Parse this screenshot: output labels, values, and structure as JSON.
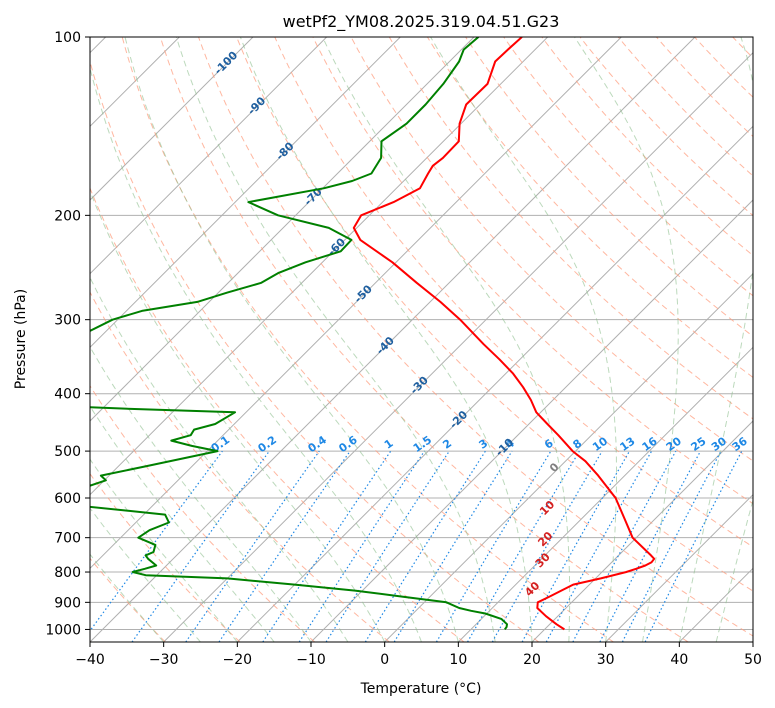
{
  "chart_data": {
    "type": "skew-t",
    "title": "wetPf2_YM08.2025.319.04.51.G23",
    "xlabel": "Temperature (°C)",
    "ylabel": "Pressure (hPa)",
    "xlim": [
      -40,
      50
    ],
    "ylim": [
      1050,
      100
    ],
    "y_scale": "log",
    "x_ticks": [
      "−40",
      "−30",
      "−20",
      "−10",
      "0",
      "10",
      "20",
      "30",
      "40",
      "50"
    ],
    "y_ticks": [
      "100",
      "200",
      "300",
      "400",
      "500",
      "600",
      "700",
      "800",
      "900",
      "1000"
    ],
    "grid": true,
    "colors": {
      "temperature": "#ff0000",
      "dewpoint": "#008000",
      "isotherm": "#b0b0b0",
      "dry_adiabat": "#ff9f80",
      "moist_adiabat": "#8fbf8f",
      "mixing_ratio": "#1e88e5",
      "dry_label": "#1f5f9f",
      "moist_label": "#d42020",
      "moist_zero_label": "#808080"
    },
    "series": [
      {
        "name": "Temperature",
        "pressure": [
          1000,
          980,
          950,
          920,
          900,
          880,
          860,
          840,
          820,
          800,
          790,
          780,
          770,
          760,
          750,
          700,
          650,
          600,
          550,
          520,
          500,
          470,
          450,
          430,
          410,
          390,
          370,
          350,
          330,
          300,
          280,
          260,
          240,
          220,
          210,
          200,
          190,
          180,
          170,
          165,
          160,
          150,
          140,
          130,
          120,
          110,
          105,
          100
        ],
        "temperature": [
          22.7,
          20.9,
          18.4,
          16.1,
          15.4,
          16.2,
          17.0,
          17.8,
          20.7,
          23.3,
          24.2,
          25.0,
          25.4,
          25.3,
          24.4,
          19.5,
          15.8,
          11.8,
          6.4,
          2.7,
          -0.4,
          -4.5,
          -7.5,
          -10.6,
          -13.0,
          -15.8,
          -19.0,
          -22.8,
          -27.0,
          -33.5,
          -38.6,
          -44.4,
          -50.5,
          -57.9,
          -60.4,
          -61.1,
          -58.5,
          -56.8,
          -57.7,
          -58.1,
          -57.8,
          -57.9,
          -60.2,
          -61.9,
          -61.8,
          -63.8,
          -63.7,
          -63.5
        ]
      },
      {
        "name": "Dewpoint",
        "pressure": [
          1000,
          990,
          980,
          960,
          940,
          930,
          920,
          900,
          880,
          860,
          840,
          820,
          810,
          800,
          790,
          780,
          760,
          750,
          740,
          720,
          700,
          680,
          660,
          640,
          620,
          610,
          600,
          590,
          580,
          560,
          550,
          530,
          500,
          490,
          480,
          470,
          460,
          450,
          430,
          425,
          420,
          400,
          380,
          360,
          340,
          320,
          300,
          290,
          280,
          270,
          260,
          250,
          240,
          230,
          220,
          210,
          200,
          190,
          180,
          175,
          170,
          160,
          150,
          140,
          130,
          120,
          110,
          105,
          100
        ],
        "temperature": [
          14.6,
          14.5,
          14.2,
          12.7,
          9.8,
          7.5,
          5.5,
          3.0,
          -3.8,
          -11.0,
          -20.0,
          -30.0,
          -41.5,
          -43.7,
          -42.5,
          -41.4,
          -43.4,
          -44.2,
          -43.6,
          -44.3,
          -47.6,
          -47.1,
          -45.5,
          -47.1,
          -59.0,
          -66.8,
          -70.3,
          -66.0,
          -62.2,
          -59.8,
          -61.1,
          -56.2,
          -48.6,
          -52.8,
          -56.3,
          -54.4,
          -54.7,
          -52.6,
          -51.5,
          -64.5,
          -75.8,
          -78.5,
          -79.9,
          -82.2,
          -84.3,
          -83.0,
          -80.7,
          -77.9,
          -71.6,
          -68.8,
          -65.5,
          -64.5,
          -62.3,
          -59.0,
          -59.1,
          -63.8,
          -72.4,
          -78.2,
          -69.8,
          -67.0,
          -65.4,
          -66.2,
          -68.4,
          -67.4,
          -67.4,
          -67.8,
          -68.7,
          -69.7,
          -69.4
        ]
      }
    ],
    "isotherm_values": [
      -140,
      -130,
      -120,
      -110,
      -100,
      -90,
      -80,
      -70,
      -60,
      -50,
      -40,
      -30,
      -20,
      -10,
      0,
      10,
      20,
      30,
      40,
      50
    ],
    "dry_adiabat_labels": [
      "-100",
      "-90",
      "-80",
      "-70",
      "-60",
      "-50",
      "-40",
      "-30",
      "-20",
      "-10"
    ],
    "dry_adiabat_label_values": [
      -100,
      -90,
      -80,
      -70,
      -60,
      -50,
      -40,
      -30,
      -20,
      -10
    ],
    "mixing_ratio_labels": [
      "0.1",
      "0.2",
      "0.4",
      "0.6",
      "1",
      "1.5",
      "2",
      "3",
      "4",
      "6",
      "8",
      "10",
      "13",
      "16",
      "20",
      "25",
      "30",
      "36"
    ],
    "mixing_ratio_values": [
      0.1,
      0.2,
      0.4,
      0.6,
      1,
      1.5,
      2,
      3,
      4,
      6,
      8,
      10,
      13,
      16,
      20,
      25,
      30,
      36
    ],
    "moist_adiabat_labels": [
      "0",
      "10",
      "20",
      "30",
      "40"
    ],
    "moist_adiabat_values": [
      0,
      10,
      20,
      30,
      40
    ]
  }
}
